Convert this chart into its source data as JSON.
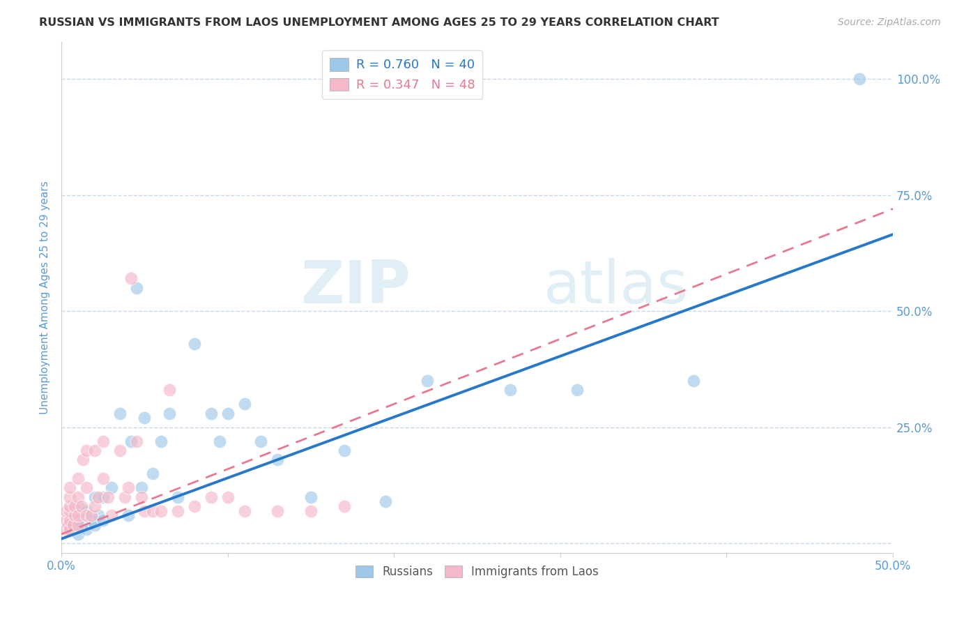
{
  "title": "RUSSIAN VS IMMIGRANTS FROM LAOS UNEMPLOYMENT AMONG AGES 25 TO 29 YEARS CORRELATION CHART",
  "source": "Source: ZipAtlas.com",
  "ylabel": "Unemployment Among Ages 25 to 29 years",
  "xlim": [
    0.0,
    0.5
  ],
  "ylim": [
    -0.02,
    1.08
  ],
  "xticks": [
    0.0,
    0.1,
    0.2,
    0.3,
    0.4,
    0.5
  ],
  "xtick_labels_show": [
    "0.0%",
    "",
    "",
    "",
    "",
    "50.0%"
  ],
  "yticks_right": [
    0.0,
    0.25,
    0.5,
    0.75,
    1.0
  ],
  "ytick_labels_right": [
    "",
    "25.0%",
    "50.0%",
    "75.0%",
    "100.0%"
  ],
  "r_russian": 0.76,
  "n_russian": 40,
  "r_laos": 0.347,
  "n_laos": 48,
  "blue_scatter_color": "#9ec8e8",
  "pink_scatter_color": "#f4b8c8",
  "blue_line_color": "#2878c8",
  "pink_line_color": "#e87890",
  "axis_label_color": "#5b9bd5",
  "tick_color": "#5b9bd5",
  "grid_color": "#c8d8e8",
  "watermark_zip": "ZIP",
  "watermark_atlas": "atlas",
  "blue_line_x0": 0.0,
  "blue_line_y0": 0.01,
  "blue_line_x1": 0.5,
  "blue_line_y1": 0.665,
  "pink_line_x0": 0.0,
  "pink_line_y0": 0.02,
  "pink_line_x1": 0.5,
  "pink_line_y1": 0.72,
  "russians_x": [
    0.005,
    0.008,
    0.01,
    0.01,
    0.01,
    0.012,
    0.015,
    0.015,
    0.018,
    0.02,
    0.02,
    0.022,
    0.025,
    0.025,
    0.03,
    0.035,
    0.04,
    0.042,
    0.045,
    0.048,
    0.05,
    0.055,
    0.06,
    0.065,
    0.07,
    0.08,
    0.09,
    0.095,
    0.1,
    0.11,
    0.12,
    0.13,
    0.15,
    0.17,
    0.195,
    0.22,
    0.27,
    0.31,
    0.38,
    0.48
  ],
  "russians_y": [
    0.03,
    0.04,
    0.02,
    0.05,
    0.08,
    0.04,
    0.03,
    0.07,
    0.05,
    0.04,
    0.1,
    0.06,
    0.05,
    0.1,
    0.12,
    0.28,
    0.06,
    0.22,
    0.55,
    0.12,
    0.27,
    0.15,
    0.22,
    0.28,
    0.1,
    0.43,
    0.28,
    0.22,
    0.28,
    0.3,
    0.22,
    0.18,
    0.1,
    0.2,
    0.09,
    0.35,
    0.33,
    0.33,
    0.35,
    1.0
  ],
  "laos_x": [
    0.003,
    0.003,
    0.003,
    0.004,
    0.005,
    0.005,
    0.005,
    0.005,
    0.005,
    0.005,
    0.007,
    0.008,
    0.008,
    0.01,
    0.01,
    0.01,
    0.01,
    0.012,
    0.013,
    0.015,
    0.015,
    0.015,
    0.018,
    0.02,
    0.02,
    0.022,
    0.025,
    0.025,
    0.028,
    0.03,
    0.035,
    0.038,
    0.04,
    0.042,
    0.045,
    0.048,
    0.05,
    0.055,
    0.06,
    0.065,
    0.07,
    0.08,
    0.09,
    0.1,
    0.11,
    0.13,
    0.15,
    0.17
  ],
  "laos_y": [
    0.03,
    0.05,
    0.07,
    0.04,
    0.03,
    0.05,
    0.07,
    0.08,
    0.1,
    0.12,
    0.04,
    0.06,
    0.08,
    0.04,
    0.06,
    0.1,
    0.14,
    0.08,
    0.18,
    0.06,
    0.12,
    0.2,
    0.06,
    0.08,
    0.2,
    0.1,
    0.14,
    0.22,
    0.1,
    0.06,
    0.2,
    0.1,
    0.12,
    0.57,
    0.22,
    0.1,
    0.07,
    0.07,
    0.07,
    0.33,
    0.07,
    0.08,
    0.1,
    0.1,
    0.07,
    0.07,
    0.07,
    0.08
  ]
}
